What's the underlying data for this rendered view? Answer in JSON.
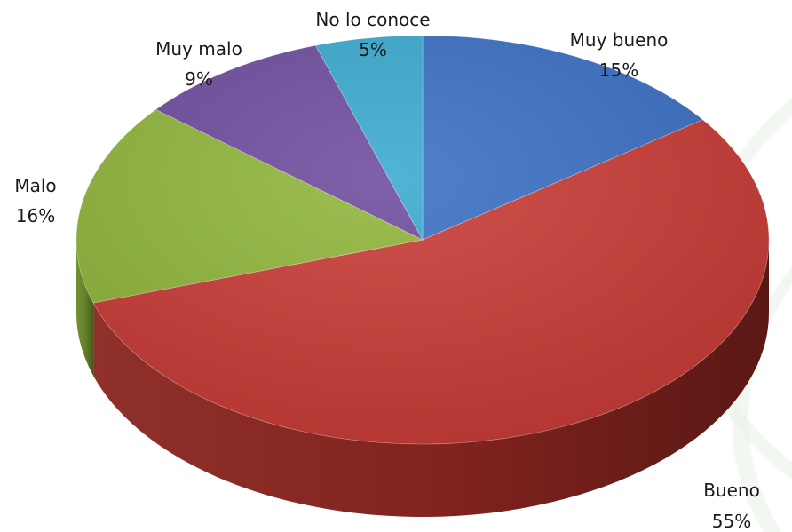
{
  "chart_data": {
    "type": "pie",
    "title": "",
    "categories": [
      "Muy bueno",
      "Bueno",
      "Malo",
      "Muy malo",
      "No lo conoce"
    ],
    "values": [
      15,
      55,
      16,
      9,
      5
    ],
    "labels": [
      "15%",
      "55%",
      "16%",
      "9%",
      "5%"
    ],
    "colors": [
      "#3a6fc4",
      "#c93a35",
      "#90b53a",
      "#6e4c9e",
      "#3aa9cf"
    ],
    "side_colors": [
      "#2c5596",
      "#8a2520",
      "#6a8a2a",
      "#503775",
      "#2a7f9c"
    ],
    "three_d": true,
    "legend": "none"
  }
}
